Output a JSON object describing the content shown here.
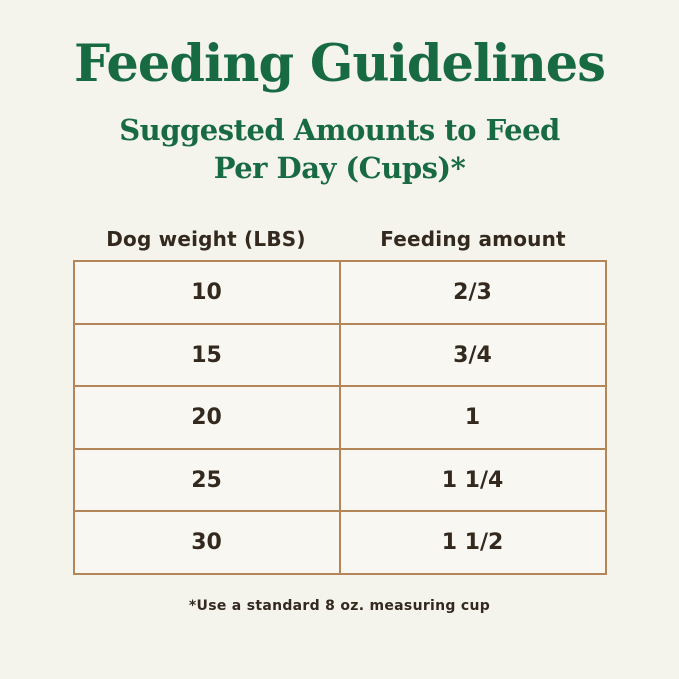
{
  "page": {
    "title": "Feeding Guidelines",
    "subtitle_line1": "Suggested Amounts to Feed",
    "subtitle_line2": "Per Day (Cups)*",
    "footnote": "*Use a standard 8 oz. measuring cup"
  },
  "table": {
    "columns": [
      "Dog weight (LBS)",
      "Feeding amount"
    ],
    "rows": [
      [
        "10",
        "2/3"
      ],
      [
        "15",
        "3/4"
      ],
      [
        "20",
        "1"
      ],
      [
        "25",
        "1 1/4"
      ],
      [
        "30",
        "1 1/2"
      ]
    ]
  },
  "chart_data": {
    "type": "table",
    "title": "Feeding Guidelines",
    "subtitle": "Suggested Amounts to Feed Per Day (Cups)*",
    "columns": [
      "Dog weight (LBS)",
      "Feeding amount"
    ],
    "rows": [
      [
        "10",
        "2/3"
      ],
      [
        "15",
        "3/4"
      ],
      [
        "20",
        "1"
      ],
      [
        "25",
        "1 1/4"
      ],
      [
        "30",
        "1 1/2"
      ]
    ],
    "footnote": "*Use a standard 8 oz. measuring cup"
  },
  "colors": {
    "background": "#f4f3ec",
    "title_green": "#186a43",
    "table_border": "#b5855a",
    "cell_background": "#f8f7f1",
    "text_dark": "#33291f"
  }
}
